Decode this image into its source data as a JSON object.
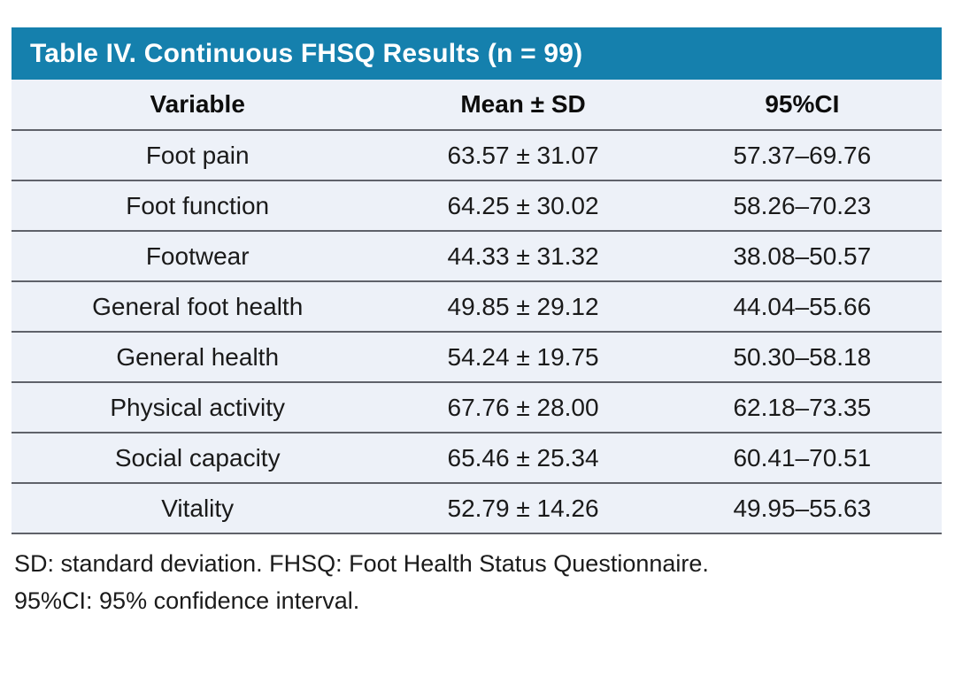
{
  "table": {
    "title": "Table IV. Continuous FHSQ Results (n = 99)",
    "columns": [
      "Variable",
      "Mean ± SD",
      "95%CI"
    ],
    "rows": [
      {
        "variable": "Foot pain",
        "mean_sd": "63.57 ± 31.07",
        "ci": "57.37–69.76"
      },
      {
        "variable": "Foot function",
        "mean_sd": "64.25 ± 30.02",
        "ci": "58.26–70.23"
      },
      {
        "variable": "Footwear",
        "mean_sd": "44.33 ± 31.32",
        "ci": "38.08–50.57"
      },
      {
        "variable": "General foot health",
        "mean_sd": "49.85 ± 29.12",
        "ci": "44.04–55.66"
      },
      {
        "variable": "General health",
        "mean_sd": "54.24 ± 19.75",
        "ci": "50.30–58.18"
      },
      {
        "variable": "Physical activity",
        "mean_sd": "67.76 ± 28.00",
        "ci": "62.18–73.35"
      },
      {
        "variable": "Social capacity",
        "mean_sd": "65.46 ± 25.34",
        "ci": "60.41–70.51"
      },
      {
        "variable": "Vitality",
        "mean_sd": "52.79 ± 14.26",
        "ci": "49.95–55.63"
      }
    ],
    "footnotes": [
      "SD: standard deviation. FHSQ: Foot Health Status Questionnaire.",
      "95%CI: 95% confidence interval."
    ],
    "colors": {
      "title_bar_bg": "#1580ad",
      "title_text": "#ffffff",
      "row_bg": "#edf1f8",
      "divider": "#5f626a",
      "body_text": "#1a1a1a"
    }
  }
}
